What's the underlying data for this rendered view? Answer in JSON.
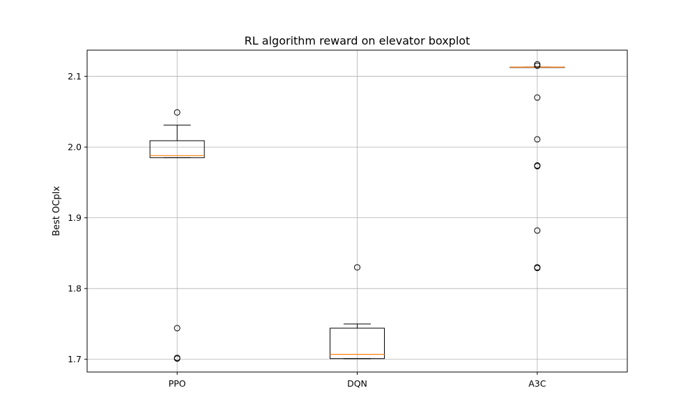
{
  "chart_data": {
    "type": "boxplot",
    "title": "RL algorithm reward on elevator boxplot",
    "xlabel": "",
    "ylabel": "Best OCplx",
    "ylim": [
      1.682,
      2.137
    ],
    "yticks": [
      1.7,
      1.8,
      1.9,
      2.0,
      2.1
    ],
    "ytick_labels": [
      "1.7",
      "1.8",
      "1.9",
      "2.0",
      "2.1"
    ],
    "grid": true,
    "categories": [
      "PPO",
      "DQN",
      "A3C"
    ],
    "boxes": [
      {
        "name": "PPO",
        "whisker_low": 1.985,
        "q1": 1.985,
        "median": 1.988,
        "q3": 2.009,
        "whisker_high": 2.031,
        "fliers": [
          2.049,
          1.744,
          1.702,
          1.701
        ]
      },
      {
        "name": "DQN",
        "whisker_low": 1.701,
        "q1": 1.701,
        "median": 1.707,
        "q3": 1.744,
        "whisker_high": 1.75,
        "fliers": [
          1.83
        ]
      },
      {
        "name": "A3C",
        "whisker_low": 2.113,
        "q1": 2.113,
        "median": 2.113,
        "q3": 2.113,
        "whisker_high": 2.113,
        "fliers": [
          2.117,
          2.115,
          2.07,
          2.011,
          1.974,
          1.973,
          1.882,
          1.83,
          1.829
        ]
      }
    ],
    "colors": {
      "box": "#000000",
      "median": "#ff7f0e",
      "grid": "#b0b0b0",
      "flier": "#000000"
    }
  }
}
